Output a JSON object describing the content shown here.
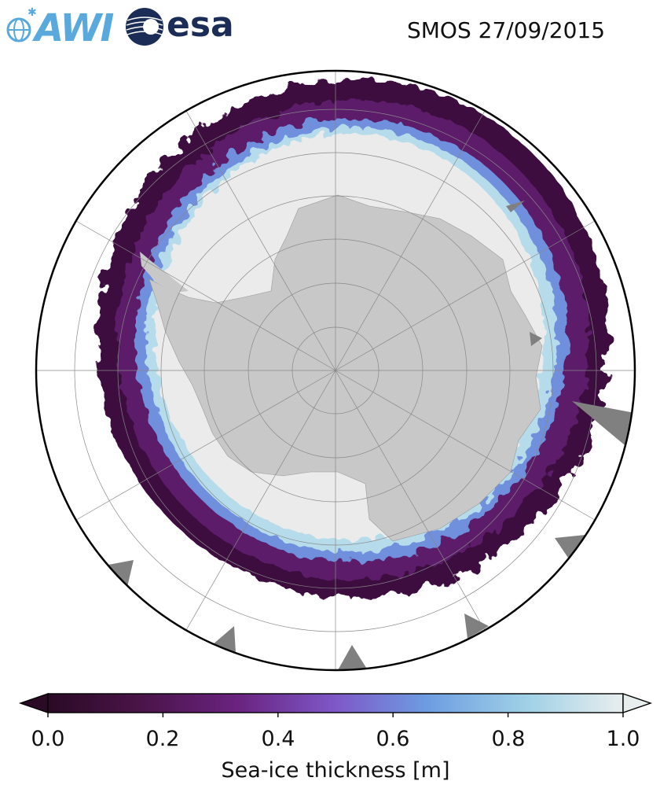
{
  "header": {
    "title": "SMOS 27/09/2015",
    "logos": [
      {
        "name": "awi-logo",
        "text": "AWI",
        "color": "#5aa9dc"
      },
      {
        "name": "esa-logo",
        "text": "esa",
        "color": "#1b2d57"
      }
    ]
  },
  "map": {
    "projection": "south-polar-stereographic",
    "variable": "Sea-ice thickness",
    "colors": {
      "land": "#c8c8c8",
      "ocean": "#ffffff",
      "no_data": "#808080",
      "thick_ice": "#ebebeb",
      "graticule": "#888888"
    }
  },
  "colorbar": {
    "label": "Sea-ice thickness [m]",
    "min": 0.0,
    "max": 1.0,
    "ticks": [
      "0.0",
      "0.2",
      "0.4",
      "0.6",
      "0.8",
      "1.0"
    ],
    "extend": "both",
    "colormap": [
      "#2a0a25",
      "#4a1448",
      "#6a2380",
      "#7e58c8",
      "#6d9de2",
      "#9fd0e6",
      "#e8eeee"
    ]
  }
}
